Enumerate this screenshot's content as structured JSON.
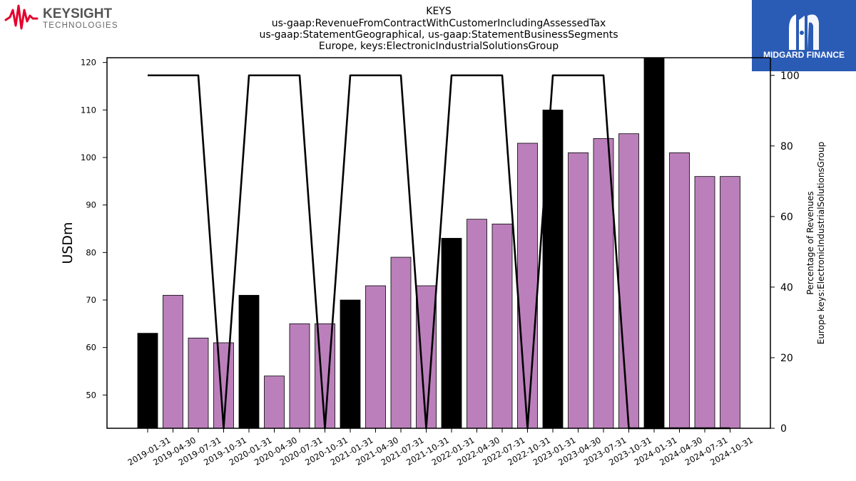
{
  "brand_left": {
    "name": "KEYSIGHT",
    "sub": "TECHNOLOGIES",
    "color": "#e4002b"
  },
  "brand_right": {
    "name": "MIDGARD FINANCE",
    "bg": "#2a5bb5"
  },
  "chart_data": {
    "type": "bar",
    "title": [
      "KEYS",
      "us-gaap:RevenueFromContractWithCustomerIncludingAssessedTax",
      "us-gaap:StatementGeographical, us-gaap:StatementBusinessSegments",
      "Europe, keys:ElectronicIndustrialSolutionsGroup"
    ],
    "ylabel": "USDm",
    "y2label": [
      "Percentage of Revenues",
      "Europe keys:ElectronicIndustrialSolutionsGroup"
    ],
    "ylim": [
      43,
      121
    ],
    "y2lim": [
      0,
      105
    ],
    "yticks": [
      50,
      60,
      70,
      80,
      90,
      100,
      110,
      120
    ],
    "y2ticks": [
      0,
      20,
      40,
      60,
      80,
      100
    ],
    "categories": [
      "2019-01-31",
      "2019-04-30",
      "2019-07-31",
      "2019-10-31",
      "2020-01-31",
      "2020-04-30",
      "2020-07-31",
      "2020-10-31",
      "2021-01-31",
      "2021-04-30",
      "2021-07-31",
      "2021-10-31",
      "2022-01-31",
      "2022-04-30",
      "2022-07-31",
      "2022-10-31",
      "2023-01-31",
      "2023-04-30",
      "2023-07-31",
      "2023-10-31",
      "2024-01-31",
      "2024-04-30",
      "2024-07-31",
      "2024-10-31"
    ],
    "values": [
      63,
      71,
      62,
      61,
      71,
      54,
      65,
      65,
      70,
      73,
      79,
      73,
      83,
      87,
      86,
      103,
      110,
      101,
      104,
      105,
      121,
      101,
      96,
      96
    ],
    "bar_colors": {
      "q1": "#000000",
      "other": "#bb80bb"
    },
    "line_series": {
      "type": "line",
      "color": "#000000",
      "values": [
        100,
        100,
        100,
        0,
        100,
        100,
        100,
        0,
        100,
        100,
        100,
        0,
        100,
        100,
        100,
        0,
        100,
        100,
        100,
        0,
        0,
        0,
        0,
        0
      ]
    }
  }
}
